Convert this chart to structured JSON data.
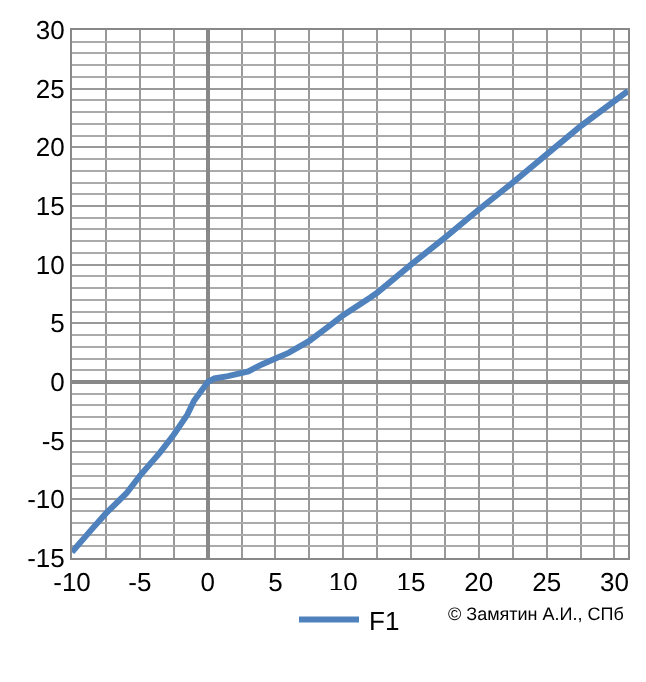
{
  "chart_data": {
    "type": "line",
    "x": [
      -10,
      -8.5,
      -7.5,
      -6,
      -5,
      -3.5,
      -2.5,
      -1.5,
      -1,
      -0.3,
      0,
      0.5,
      1.5,
      3,
      4,
      5,
      6,
      7.5,
      9,
      10,
      12,
      12.5,
      15,
      17.5,
      20,
      22.5,
      25,
      27.5,
      31
    ],
    "series": [
      {
        "name": "F1",
        "color": "#4f81bd",
        "values": [
          -14.5,
          -12.5,
          -11.2,
          -9.5,
          -8,
          -6,
          -4.5,
          -2.8,
          -1.6,
          -0.5,
          0,
          0.3,
          0.5,
          0.9,
          1.5,
          2,
          2.5,
          3.5,
          4.8,
          5.7,
          7.2,
          7.6,
          10,
          12.3,
          14.7,
          17,
          19.4,
          21.8,
          24.8
        ]
      }
    ],
    "xlim": [
      -10,
      31
    ],
    "ylim": [
      -15,
      30
    ],
    "xticks": [
      -10,
      -5,
      0,
      5,
      10,
      15,
      20,
      25,
      30
    ],
    "yticks": [
      -15,
      -10,
      -5,
      0,
      5,
      10,
      15,
      20,
      25,
      30
    ],
    "grid": true,
    "legend": "bottom",
    "line_style": "solid",
    "marker": "none",
    "annotations": [
      "© Замятин А.И., СПб"
    ]
  }
}
